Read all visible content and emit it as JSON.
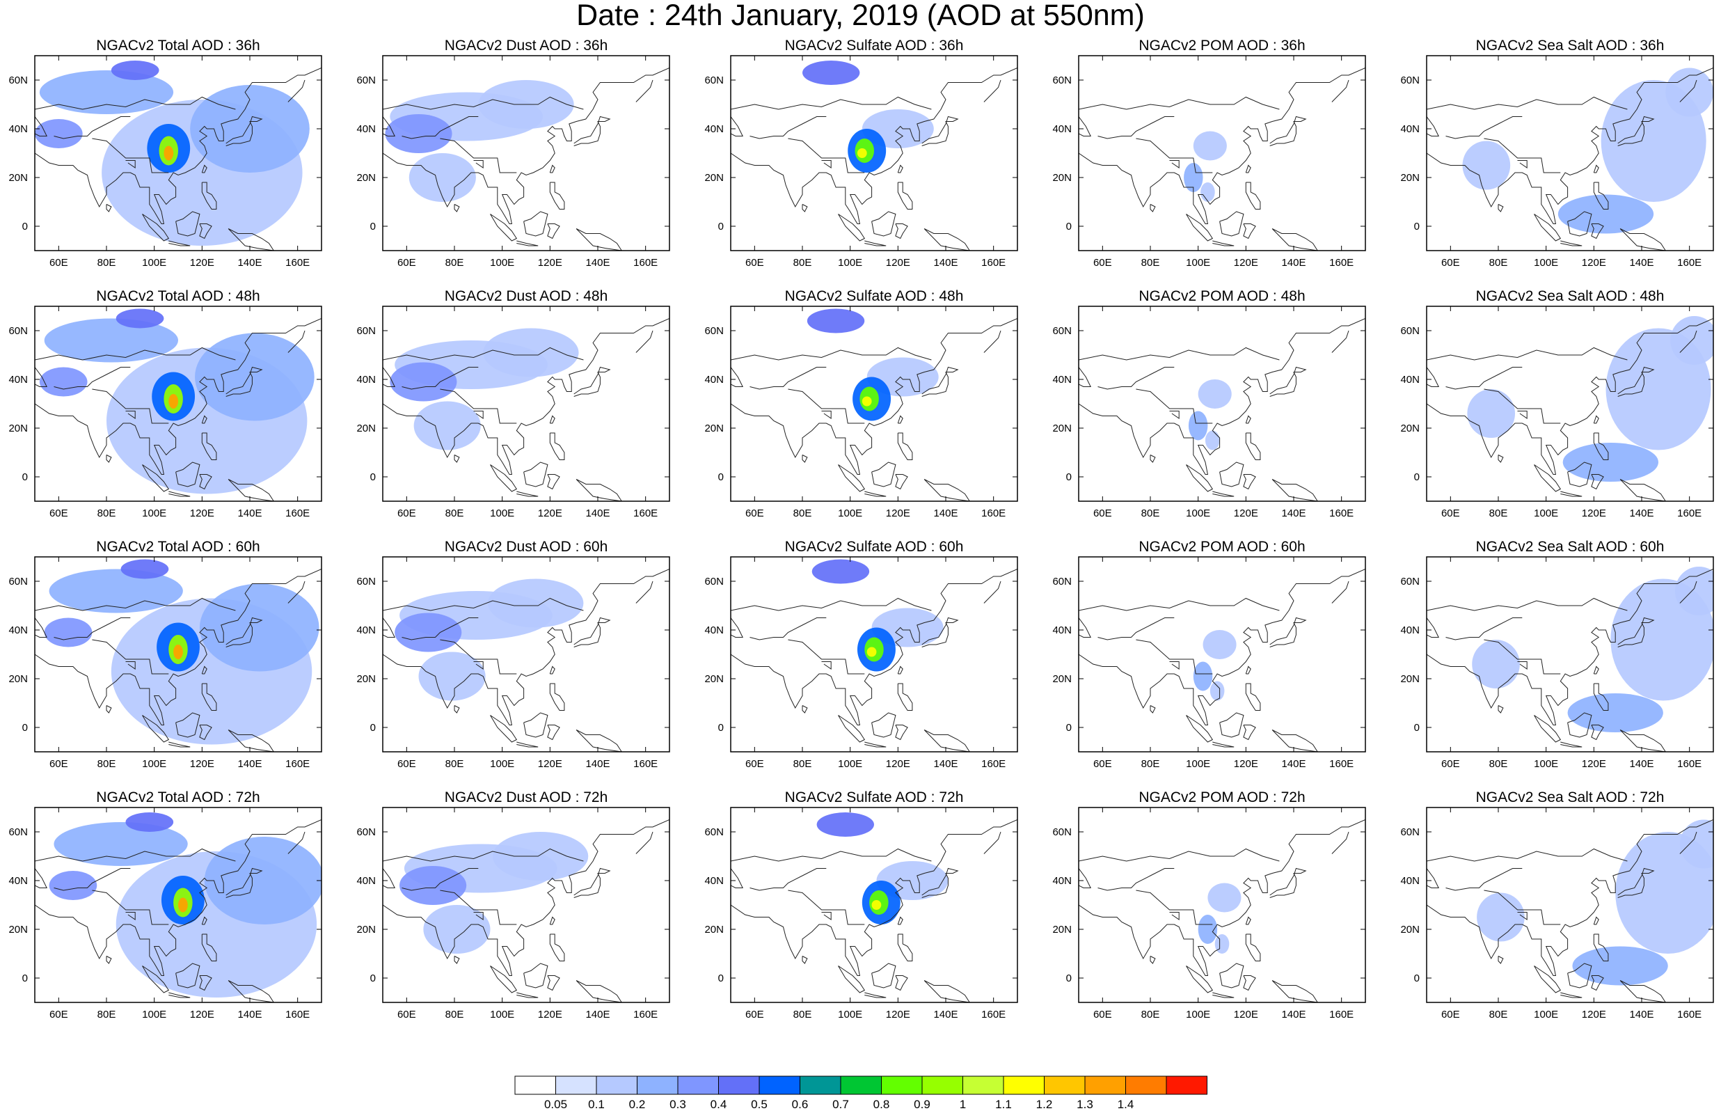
{
  "title": "Date : 24th January, 2019 (AOD at 550nm)",
  "colors": {
    "levels": [
      "#ffffff",
      "#d6e2ff",
      "#b5c9ff",
      "#8eb2ff",
      "#7f96ff",
      "#6370f8",
      "#0063ff",
      "#009696",
      "#00c633",
      "#63ff00",
      "#96ff00",
      "#c6ff33",
      "#ffff00",
      "#ffc600",
      "#ffa000",
      "#ff7c00",
      "#ff1900"
    ]
  },
  "colorbar": {
    "labels": [
      "0.05",
      "0.1",
      "0.2",
      "0.3",
      "0.4",
      "0.5",
      "0.6",
      "0.7",
      "0.8",
      "0.9",
      "1",
      "1.1",
      "1.2",
      "1.3",
      "1.4"
    ]
  },
  "axes": {
    "x_ticks": [
      "60E",
      "80E",
      "100E",
      "120E",
      "140E",
      "160E"
    ],
    "y_ticks": [
      "60N",
      "40N",
      "20N",
      "0"
    ]
  },
  "panels": [
    {
      "title": "NGACv2 Total AOD : 36h",
      "species": "total",
      "hour": 36
    },
    {
      "title": "NGACv2 Dust AOD : 36h",
      "species": "dust",
      "hour": 36
    },
    {
      "title": "NGACv2 Sulfate AOD : 36h",
      "species": "sulfate",
      "hour": 36
    },
    {
      "title": "NGACv2 POM AOD : 36h",
      "species": "pom",
      "hour": 36
    },
    {
      "title": "NGACv2 Sea Salt AOD : 36h",
      "species": "seasalt",
      "hour": 36
    },
    {
      "title": "NGACv2 Total AOD : 48h",
      "species": "total",
      "hour": 48
    },
    {
      "title": "NGACv2 Dust AOD : 48h",
      "species": "dust",
      "hour": 48
    },
    {
      "title": "NGACv2 Sulfate AOD : 48h",
      "species": "sulfate",
      "hour": 48
    },
    {
      "title": "NGACv2 POM AOD : 48h",
      "species": "pom",
      "hour": 48
    },
    {
      "title": "NGACv2 Sea Salt AOD : 48h",
      "species": "seasalt",
      "hour": 48
    },
    {
      "title": "NGACv2 Total AOD : 60h",
      "species": "total",
      "hour": 60
    },
    {
      "title": "NGACv2 Dust AOD : 60h",
      "species": "dust",
      "hour": 60
    },
    {
      "title": "NGACv2 Sulfate AOD : 60h",
      "species": "sulfate",
      "hour": 60
    },
    {
      "title": "NGACv2 POM AOD : 60h",
      "species": "pom",
      "hour": 60
    },
    {
      "title": "NGACv2 Sea Salt AOD : 60h",
      "species": "seasalt",
      "hour": 60
    },
    {
      "title": "NGACv2 Total AOD : 72h",
      "species": "total",
      "hour": 72
    },
    {
      "title": "NGACv2 Dust AOD : 72h",
      "species": "dust",
      "hour": 72
    },
    {
      "title": "NGACv2 Sulfate AOD : 72h",
      "species": "sulfate",
      "hour": 72
    },
    {
      "title": "NGACv2 POM AOD : 72h",
      "species": "pom",
      "hour": 72
    },
    {
      "title": "NGACv2 Sea Salt  AOD : 72h",
      "species": "seasalt",
      "hour": 72
    }
  ],
  "chart_data": {
    "type": "heatmap",
    "title": "Date : 24th January, 2019 (AOD at 550nm)",
    "variable": "AOD at 550nm",
    "xlim": [
      50,
      170
    ],
    "ylim": [
      -10,
      70
    ],
    "x_ticks": [
      60,
      80,
      100,
      120,
      140,
      160
    ],
    "y_ticks": [
      0,
      20,
      40,
      60
    ],
    "levels": [
      0.05,
      0.1,
      0.2,
      0.3,
      0.4,
      0.5,
      0.6,
      0.7,
      0.8,
      0.9,
      1,
      1.1,
      1.2,
      1.3,
      1.4
    ],
    "species": {
      "total": [
        {
          "lon": 92,
          "lat": 64,
          "rx": 10,
          "ry": 4,
          "v": 0.45
        },
        {
          "lon": 80,
          "lat": 55,
          "rx": 28,
          "ry": 9,
          "v": 0.25
        },
        {
          "lon": 60,
          "lat": 38,
          "rx": 10,
          "ry": 6,
          "v": 0.35
        },
        {
          "lon": 120,
          "lat": 22,
          "rx": 42,
          "ry": 30,
          "v": 0.15
        },
        {
          "lon": 140,
          "lat": 40,
          "rx": 25,
          "ry": 18,
          "v": 0.2
        },
        {
          "lon": 106,
          "lat": 32,
          "rx": 9,
          "ry": 10,
          "v": 0.5
        },
        {
          "lon": 106,
          "lat": 31,
          "rx": 4,
          "ry": 6,
          "v": 0.9
        },
        {
          "lon": 106,
          "lat": 30,
          "rx": 2,
          "ry": 3,
          "v": 1.3
        }
      ],
      "dust": [
        {
          "lon": 65,
          "lat": 38,
          "rx": 14,
          "ry": 8,
          "v": 0.35
        },
        {
          "lon": 85,
          "lat": 45,
          "rx": 32,
          "ry": 10,
          "v": 0.15
        },
        {
          "lon": 110,
          "lat": 50,
          "rx": 20,
          "ry": 10,
          "v": 0.1
        },
        {
          "lon": 75,
          "lat": 20,
          "rx": 14,
          "ry": 10,
          "v": 0.1
        }
      ],
      "sulfate": [
        {
          "lon": 92,
          "lat": 63,
          "rx": 12,
          "ry": 5,
          "v": 0.4
        },
        {
          "lon": 107,
          "lat": 31,
          "rx": 8,
          "ry": 9,
          "v": 0.5
        },
        {
          "lon": 106,
          "lat": 31,
          "rx": 4,
          "ry": 5,
          "v": 0.85
        },
        {
          "lon": 105,
          "lat": 30,
          "rx": 2,
          "ry": 2,
          "v": 1.1
        },
        {
          "lon": 120,
          "lat": 40,
          "rx": 15,
          "ry": 8,
          "v": 0.1
        }
      ],
      "pom": [
        {
          "lon": 105,
          "lat": 33,
          "rx": 7,
          "ry": 6,
          "v": 0.15
        },
        {
          "lon": 98,
          "lat": 20,
          "rx": 4,
          "ry": 6,
          "v": 0.2
        },
        {
          "lon": 104,
          "lat": 14,
          "rx": 3,
          "ry": 4,
          "v": 0.15
        }
      ],
      "seasalt": [
        {
          "lon": 145,
          "lat": 35,
          "rx": 22,
          "ry": 25,
          "v": 0.15
        },
        {
          "lon": 125,
          "lat": 5,
          "rx": 20,
          "ry": 8,
          "v": 0.2
        },
        {
          "lon": 160,
          "lat": 55,
          "rx": 10,
          "ry": 10,
          "v": 0.15
        },
        {
          "lon": 75,
          "lat": 25,
          "rx": 10,
          "ry": 10,
          "v": 0.1
        }
      ]
    },
    "hour_shift": {
      "36": [
        0,
        0
      ],
      "48": [
        2,
        1
      ],
      "60": [
        4,
        1
      ],
      "72": [
        6,
        0
      ]
    }
  }
}
